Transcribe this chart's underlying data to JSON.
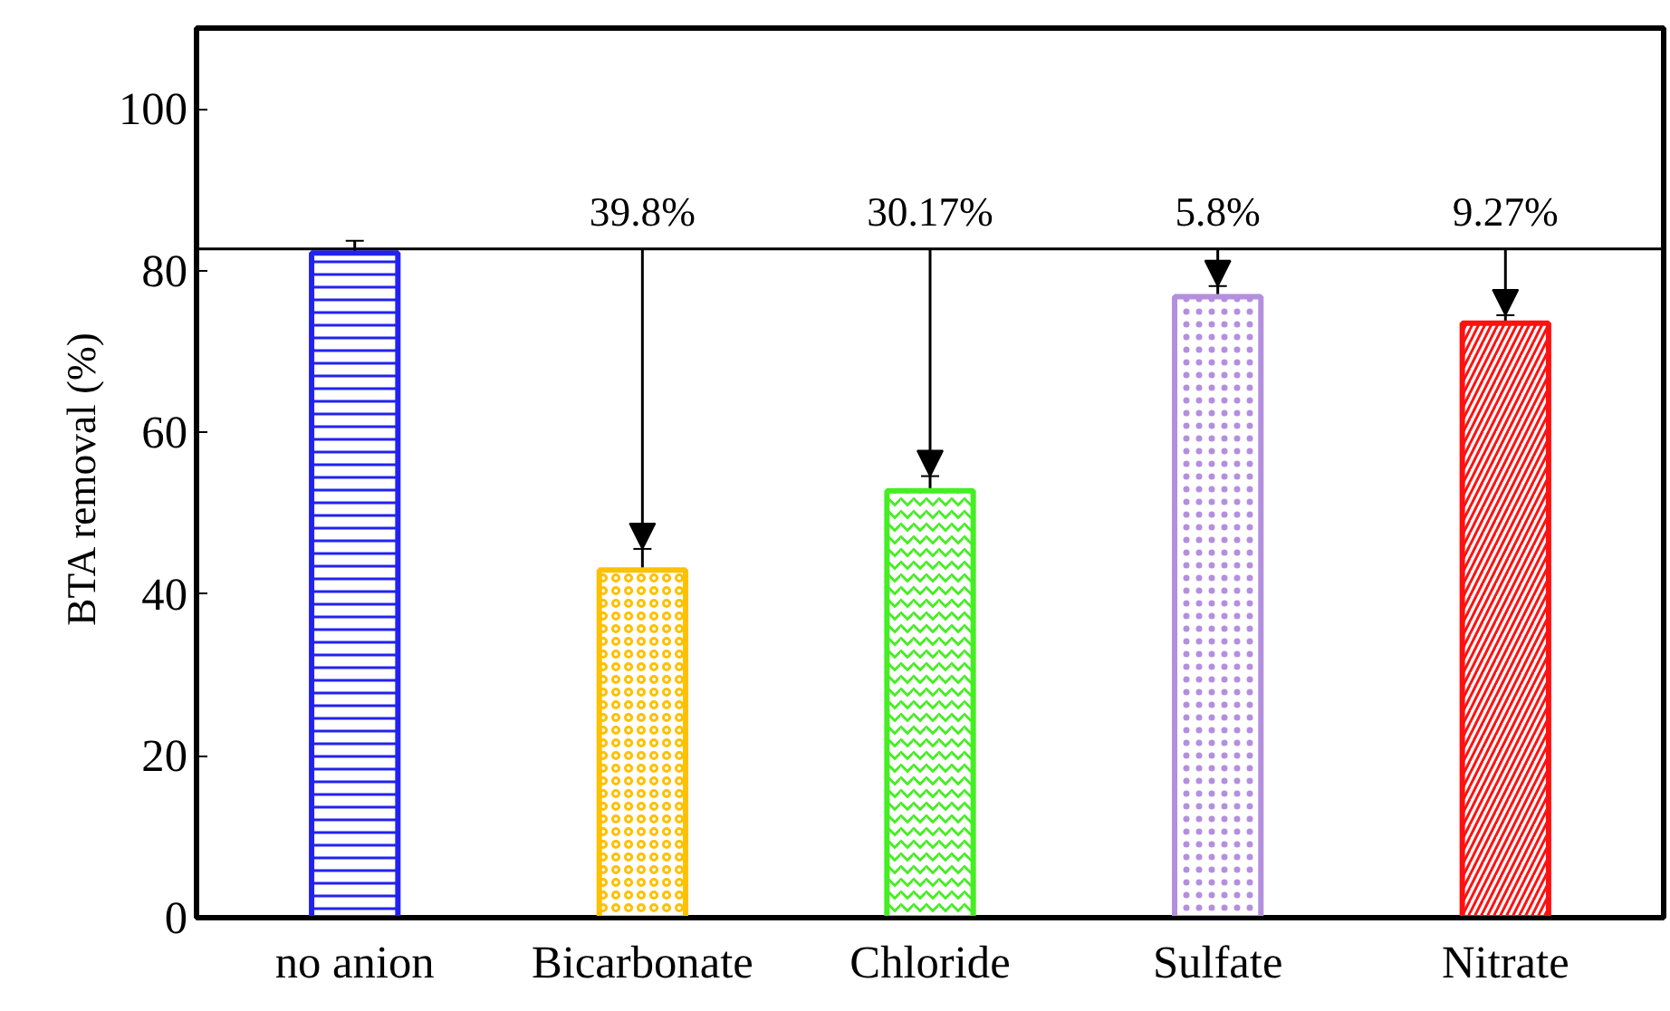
{
  "chart_data": {
    "type": "bar",
    "ylabel": "BTA removal  (%)",
    "categories": [
      "no anion",
      "Bicarbonate",
      "Chloride",
      "Sulfate",
      "Nitrate"
    ],
    "values": [
      82.2,
      43.0,
      52.8,
      76.8,
      73.5
    ],
    "errors": [
      1.5,
      2.6,
      1.8,
      1.3,
      1.0
    ],
    "colors": [
      "#2222ee",
      "#ffc000",
      "#44ee22",
      "#b48fe0",
      "#ff1111"
    ],
    "ylim": [
      0,
      110
    ],
    "yticks": [
      0,
      20,
      40,
      60,
      80,
      100
    ],
    "grid": false,
    "ref_lines": [
      {
        "axis": "y",
        "value": 82.7,
        "color": "#000000"
      }
    ],
    "annotations": [
      {
        "text": "39.8%",
        "x": "Bicarbonate",
        "y": 82.7
      },
      {
        "text": "30.17%",
        "x": "Chloride",
        "y": 82.7
      },
      {
        "text": "5.8%",
        "x": "Sulfate",
        "y": 82.7
      },
      {
        "text": "9.27%",
        "x": "Nitrate",
        "y": 82.7
      }
    ]
  }
}
